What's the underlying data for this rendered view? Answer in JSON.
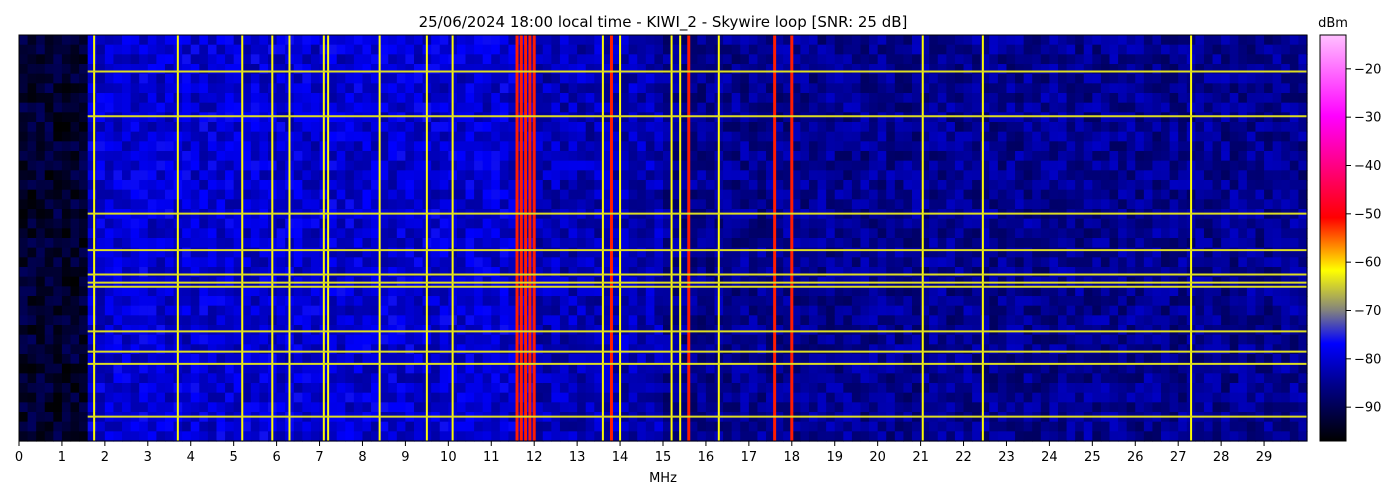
{
  "chart_data": {
    "type": "heatmap",
    "title": "25/06/2024 18:00 local time - KIWI_2 - Skywire loop [SNR: 25 dB]",
    "xlabel": "MHz",
    "ylabel": "",
    "xlim": [
      0,
      30
    ],
    "x_ticks": [
      "0",
      "1",
      "2",
      "3",
      "4",
      "5",
      "6",
      "7",
      "8",
      "9",
      "10",
      "11",
      "12",
      "13",
      "14",
      "15",
      "16",
      "17",
      "18",
      "19",
      "20",
      "21",
      "22",
      "23",
      "24",
      "25",
      "26",
      "27",
      "28",
      "29"
    ],
    "colorbar": {
      "label": "dBm",
      "range": [
        -97,
        -13
      ],
      "ticks": [
        "-20",
        "-30",
        "-40",
        "-50",
        "-60",
        "-70",
        "-80",
        "-90"
      ],
      "colormap": [
        "#000000",
        "#00008c",
        "#0000ff",
        "#808080",
        "#ffff00",
        "#ff0000",
        "#ff00ff",
        "#ffc0ff"
      ]
    },
    "background_dBm": -85,
    "strong_vertical_lines_MHz": [
      1.75,
      3.7,
      5.2,
      5.9,
      6.3,
      7.1,
      7.2,
      8.4,
      9.5,
      10.1,
      11.6,
      11.7,
      11.8,
      11.9,
      12.0,
      13.6,
      13.8,
      14.0,
      15.2,
      15.4,
      15.6,
      16.3,
      17.6,
      18.0,
      21.05,
      22.45,
      27.3
    ],
    "horizontal_interference_bands_fraction": [
      0.09,
      0.2,
      0.44,
      0.53,
      0.59,
      0.61,
      0.62,
      0.73,
      0.78,
      0.81,
      0.94
    ]
  }
}
